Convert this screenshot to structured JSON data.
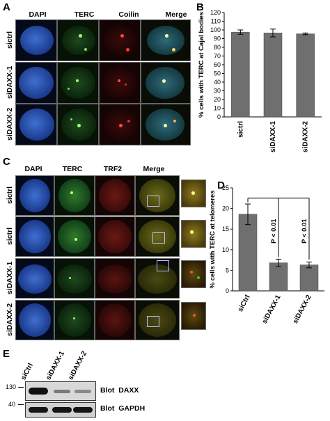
{
  "panels": {
    "A": {
      "label": "A",
      "columns": [
        "DAPI",
        "TERC",
        "Coilin",
        "Merge"
      ],
      "rows": [
        "sictrl",
        "siDAXX-1",
        "siDAXX-2"
      ]
    },
    "B": {
      "label": "B"
    },
    "C": {
      "label": "C",
      "columns": [
        "DAPI",
        "TERC",
        "TRF2",
        "Merge"
      ],
      "rows": [
        "sictrl",
        "sictrl",
        "siDAXX-1",
        "siDAXX-2"
      ]
    },
    "D": {
      "label": "D"
    },
    "E": {
      "label": "E",
      "lanes": [
        "siCtrl",
        "siDAXX-1",
        "siDAXX-2"
      ],
      "markers": [
        "130",
        "40"
      ],
      "blots": [
        "Blot  DAXX",
        "Blot  GAPDH"
      ]
    }
  },
  "chart_data": [
    {
      "type": "bar",
      "panel": "B",
      "categories": [
        "sictrl",
        "siDAXX-1",
        "siDAXX-2"
      ],
      "values": [
        97.5,
        96.5,
        95.5
      ],
      "errors": [
        2.5,
        4.5,
        1.0
      ],
      "ylabel": "% cells with TERC at Cajal bodies",
      "ylim": [
        0,
        120
      ],
      "yticks": [
        0,
        10,
        20,
        30,
        40,
        50,
        60,
        70,
        80,
        90,
        100,
        110,
        120
      ],
      "bar_color": "#6f6f6f"
    },
    {
      "type": "bar",
      "panel": "D",
      "categories": [
        "siCtrl",
        "siDAXX-1",
        "siDAXX-2"
      ],
      "values": [
        18.6,
        6.8,
        6.3
      ],
      "errors": [
        2.5,
        0.9,
        0.7
      ],
      "ylabel": "% cells with TERC at telomeres",
      "ylim": [
        0,
        25
      ],
      "yticks": [
        0,
        5,
        10,
        15,
        20,
        25
      ],
      "annotations": [
        "P < 0.01",
        "P < 0.01"
      ],
      "bar_color": "#6f6f6f"
    }
  ]
}
